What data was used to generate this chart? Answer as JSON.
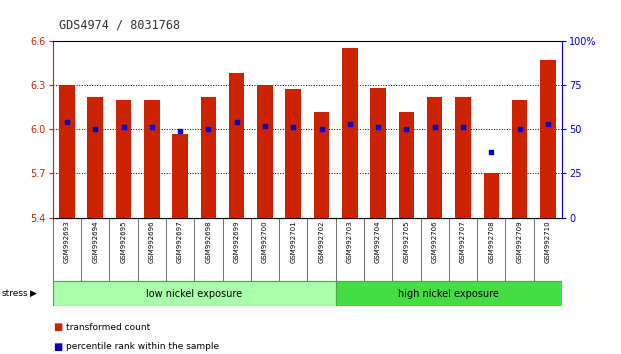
{
  "title": "GDS4974 / 8031768",
  "samples": [
    "GSM992693",
    "GSM992694",
    "GSM992695",
    "GSM992696",
    "GSM992697",
    "GSM992698",
    "GSM992699",
    "GSM992700",
    "GSM992701",
    "GSM992702",
    "GSM992703",
    "GSM992704",
    "GSM992705",
    "GSM992706",
    "GSM992707",
    "GSM992708",
    "GSM992709",
    "GSM992710"
  ],
  "bar_values": [
    6.3,
    6.22,
    6.2,
    6.2,
    5.97,
    6.22,
    6.38,
    6.3,
    6.27,
    6.12,
    6.55,
    6.28,
    6.12,
    6.22,
    6.22,
    5.7,
    6.2,
    6.47
  ],
  "pct_ranks": [
    54,
    50,
    51,
    51,
    49,
    50,
    54,
    52,
    51,
    50,
    53,
    51,
    50,
    51,
    51,
    37,
    50,
    53
  ],
  "ylim_left": [
    5.4,
    6.6
  ],
  "ylim_right": [
    0,
    100
  ],
  "yticks_left": [
    5.4,
    5.7,
    6.0,
    6.3,
    6.6
  ],
  "yticks_right": [
    0,
    25,
    50,
    75,
    100
  ],
  "ytick_right_labels": [
    "0",
    "25",
    "50",
    "75",
    "100%"
  ],
  "bar_color": "#cc2200",
  "dot_color": "#0000cc",
  "bg_color": "#ffffff",
  "low_group_label": "low nickel exposure",
  "high_group_label": "high nickel exposure",
  "stress_label": "stress",
  "legend_bar_label": "transformed count",
  "legend_dot_label": "percentile rank within the sample",
  "bar_bottom": 5.4,
  "low_count": 10,
  "high_count": 8,
  "label_bg": "#cccccc",
  "low_color": "#aaffaa",
  "high_color": "#44dd44",
  "group_border": "#44aa44"
}
